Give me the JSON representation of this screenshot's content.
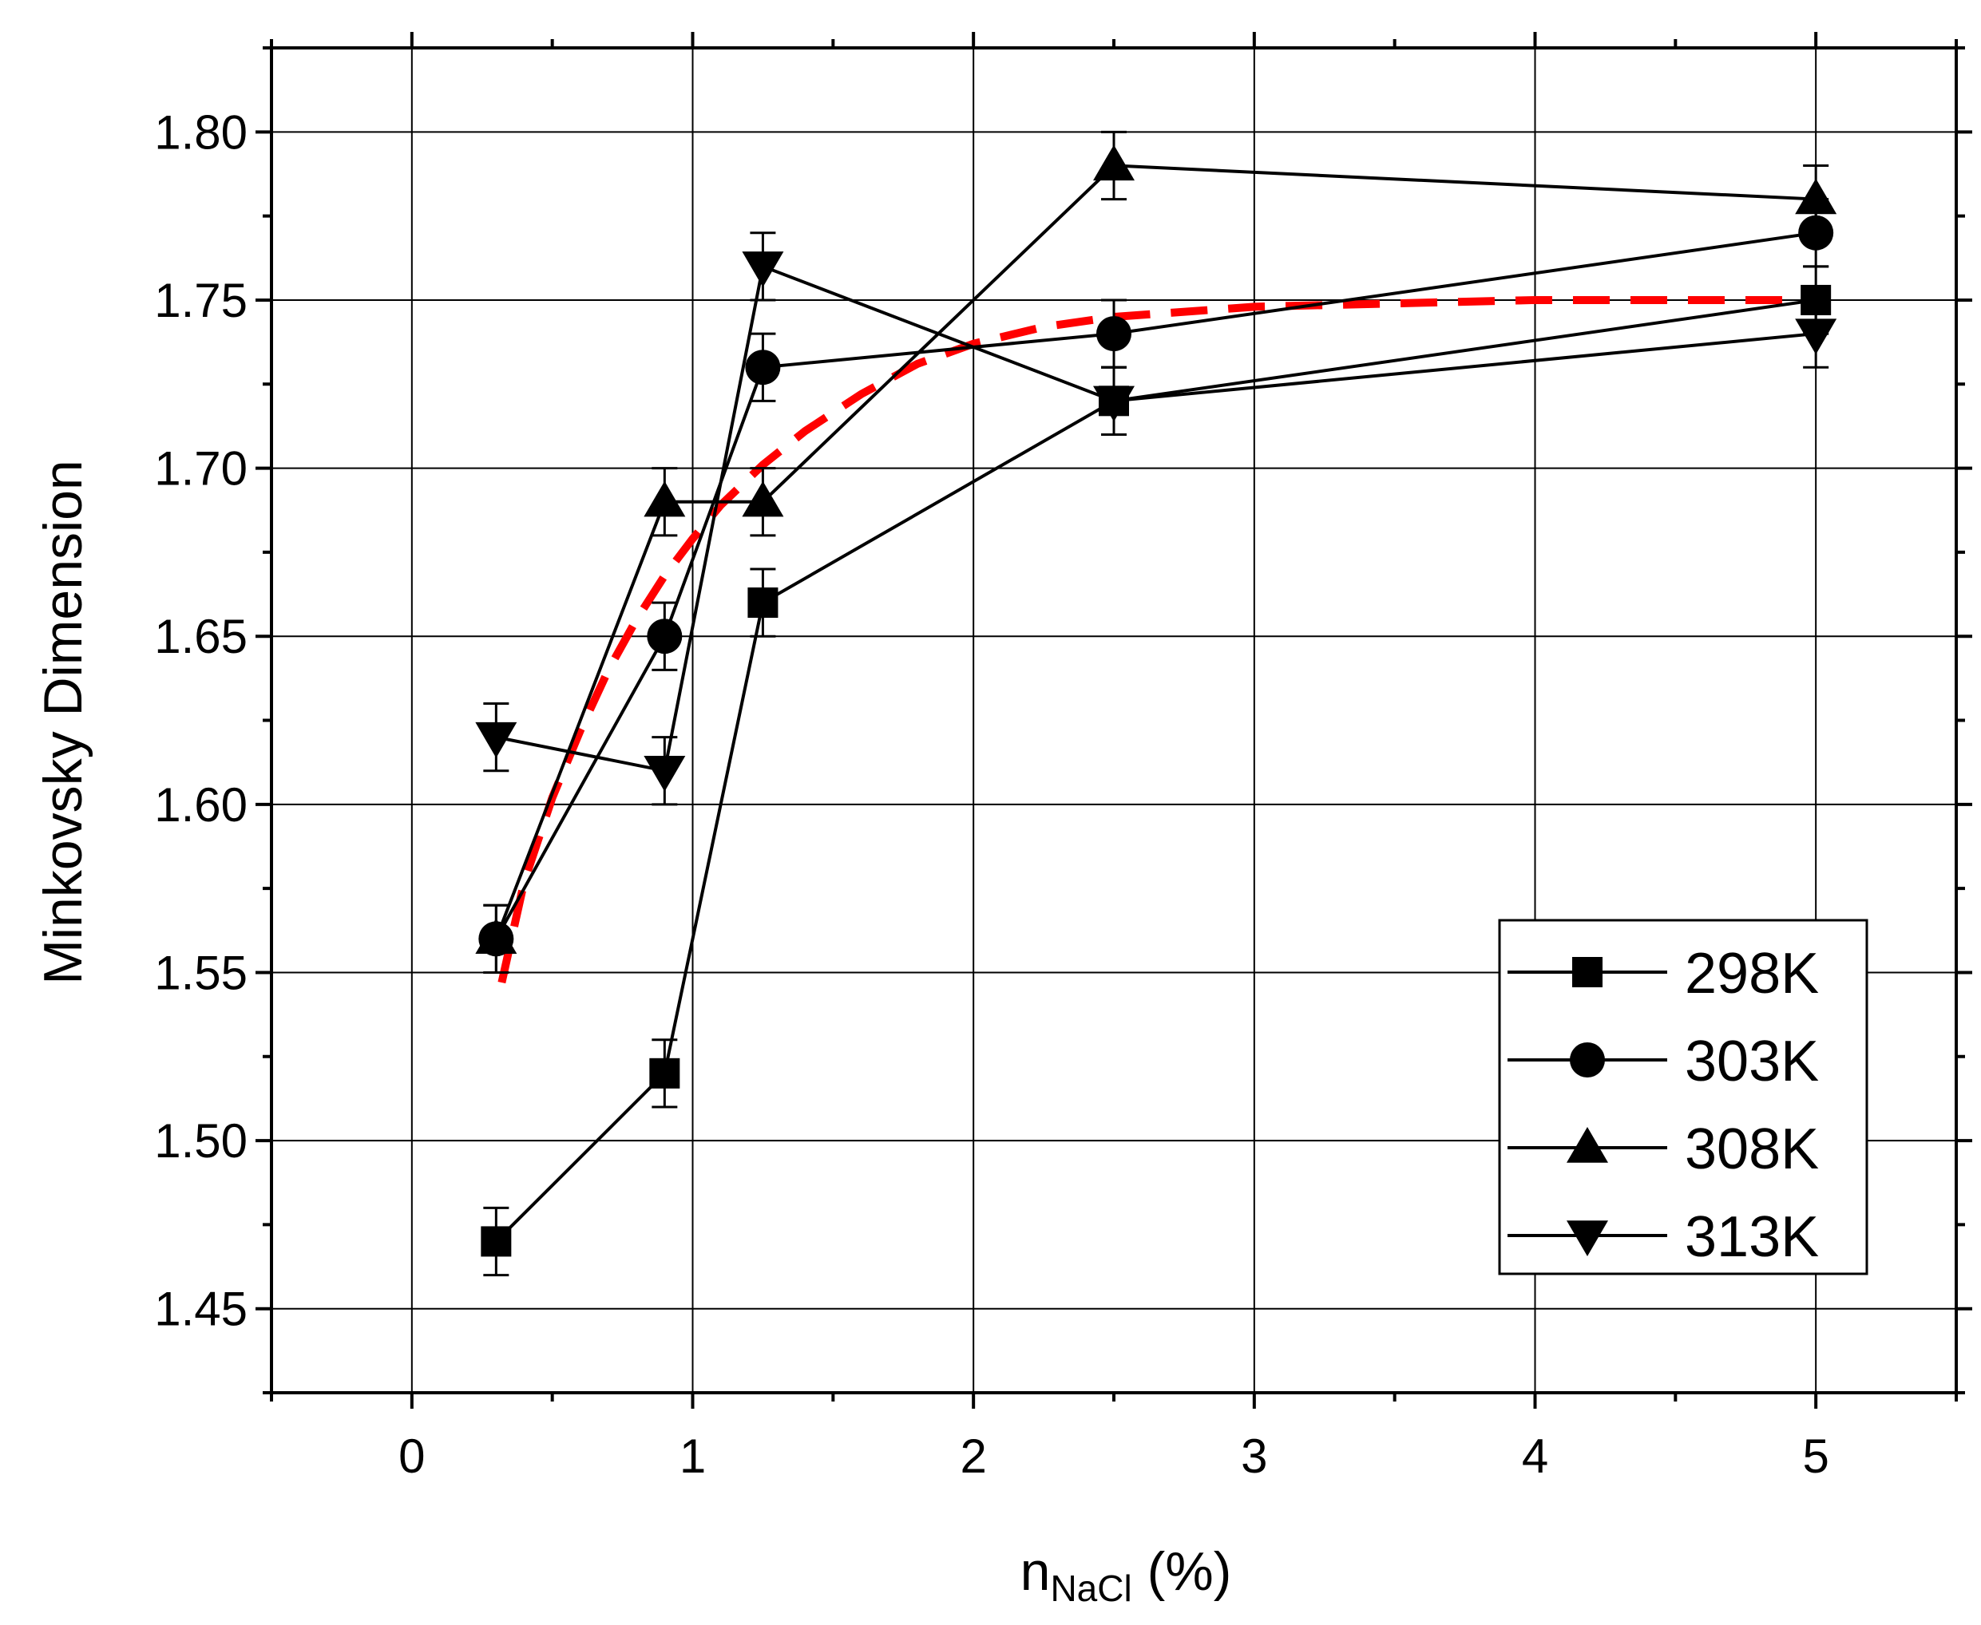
{
  "chart_data": {
    "type": "line",
    "title": "",
    "xlabel": {
      "main": "n",
      "subscript": "NaCl",
      "suffix": " (%)"
    },
    "ylabel": "Minkovsky Dimension",
    "xlim": [
      -0.5,
      5.5
    ],
    "ylim": [
      1.425,
      1.825
    ],
    "xticks": [
      0,
      1,
      2,
      3,
      4,
      5
    ],
    "xtick_labels": [
      "0",
      "1",
      "2",
      "3",
      "4",
      "5"
    ],
    "yticks": [
      1.45,
      1.5,
      1.55,
      1.6,
      1.65,
      1.7,
      1.75,
      1.8
    ],
    "ytick_labels": [
      "1.45",
      "1.50",
      "1.55",
      "1.60",
      "1.65",
      "1.70",
      "1.75",
      "1.80"
    ],
    "grid": true,
    "legend_position": "bottom-right",
    "x": [
      0.3,
      0.9,
      1.25,
      2.5,
      5
    ],
    "series": [
      {
        "name": "298K",
        "marker": "square",
        "values": [
          1.47,
          1.52,
          1.66,
          1.72,
          1.75
        ],
        "errors": [
          0.01,
          0.01,
          0.01,
          0.01,
          0.01
        ]
      },
      {
        "name": "303K",
        "marker": "circle",
        "values": [
          1.56,
          1.65,
          1.73,
          1.74,
          1.77
        ],
        "errors": [
          0.01,
          0.01,
          0.01,
          0.01,
          0.01
        ]
      },
      {
        "name": "308K",
        "marker": "triangle-up",
        "values": [
          1.56,
          1.69,
          1.69,
          1.79,
          1.78
        ],
        "errors": [
          0.01,
          0.01,
          0.01,
          0.01,
          0.01
        ]
      },
      {
        "name": "313K",
        "marker": "triangle-down",
        "values": [
          1.62,
          1.61,
          1.76,
          1.72,
          1.74
        ],
        "errors": [
          0.01,
          0.01,
          0.01,
          0.01,
          0.01
        ]
      }
    ],
    "fit_curve": {
      "style": "dashed",
      "color": "#ff0000",
      "x": [
        0.32,
        0.4,
        0.5,
        0.6,
        0.7,
        0.8,
        0.9,
        1.0,
        1.1,
        1.25,
        1.4,
        1.6,
        1.8,
        2.0,
        2.25,
        2.5,
        3.0,
        3.5,
        4.0,
        4.5,
        5.0
      ],
      "y": [
        1.547,
        1.577,
        1.602,
        1.622,
        1.64,
        1.655,
        1.668,
        1.679,
        1.689,
        1.701,
        1.711,
        1.722,
        1.731,
        1.737,
        1.742,
        1.745,
        1.748,
        1.749,
        1.75,
        1.75,
        1.75
      ]
    },
    "colors": {
      "line": "#000000",
      "fit": "#ff0000",
      "grid": "#000000"
    }
  }
}
